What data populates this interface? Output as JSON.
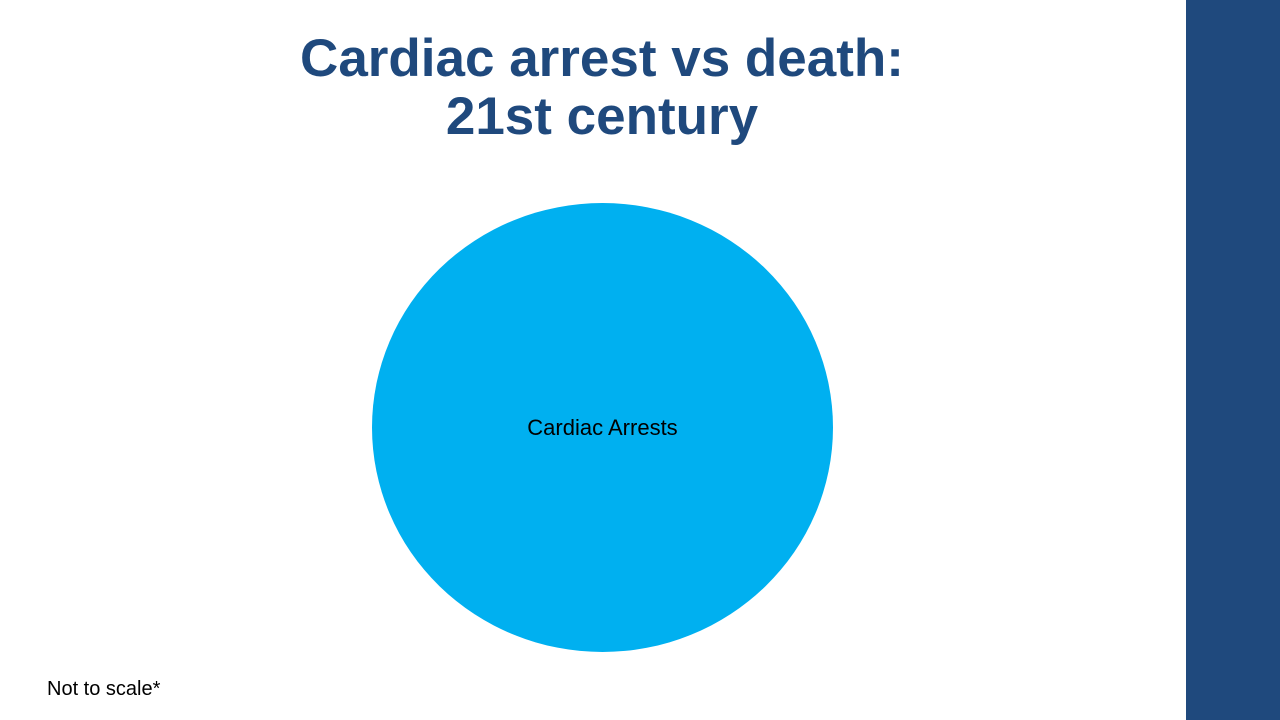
{
  "slide": {
    "title_line1": "Cardiac arrest vs death:",
    "title_line2": "21st century",
    "footnote": "Not to scale*"
  },
  "diagram": {
    "circle_label": "Cardiac Arrests"
  },
  "colors": {
    "title": "#1f497d",
    "side_bar": "#1f497d",
    "circle": "#00b0f0",
    "label_text": "#000000"
  }
}
